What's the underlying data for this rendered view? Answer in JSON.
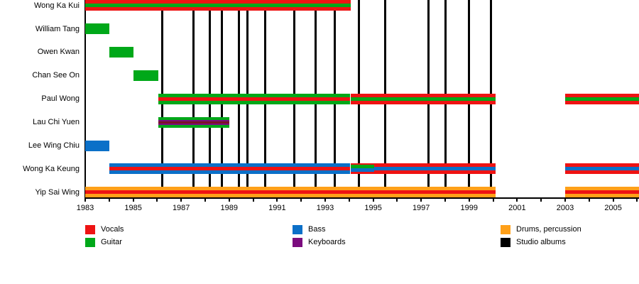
{
  "chart_data": {
    "type": "timeline",
    "description": "Band members timeline (gantt-style) with studio album release lines",
    "x_axis": {
      "start_year": 1983,
      "end_year": 2006.1,
      "labeled_years": [
        "1983",
        "1985",
        "1987",
        "1989",
        "1991",
        "1993",
        "1995",
        "1997",
        "1999",
        "2001",
        "2003",
        "2005"
      ],
      "minor_tick_every_years": 1
    },
    "members": [
      {
        "name": "Wong Ka Kui",
        "segments": [
          {
            "start": 1983.0,
            "end": 1994.05,
            "style": "vocals_guitar"
          }
        ]
      },
      {
        "name": "William Tang",
        "segments": [
          {
            "start": 1983.0,
            "end": 1984.0,
            "style": "guitar"
          }
        ]
      },
      {
        "name": "Owen Kwan",
        "segments": [
          {
            "start": 1984.0,
            "end": 1985.0,
            "style": "guitar"
          }
        ]
      },
      {
        "name": "Chan See On",
        "segments": [
          {
            "start": 1985.0,
            "end": 1986.05,
            "style": "guitar"
          }
        ]
      },
      {
        "name": "Paul Wong",
        "segments": [
          {
            "start": 1986.05,
            "end": 1994.05,
            "style": "guitar_vocals"
          },
          {
            "start": 1994.05,
            "end": 2000.1,
            "style": "vocals_guitar"
          },
          {
            "start": 2003.0,
            "end": 2006.1,
            "style": "vocals_guitar"
          }
        ]
      },
      {
        "name": "Lau Chi Yuen",
        "segments": [
          {
            "start": 1986.05,
            "end": 1989.0,
            "style": "guitar_keyboards"
          }
        ]
      },
      {
        "name": "Lee Wing Chiu",
        "segments": [
          {
            "start": 1983.0,
            "end": 1984.0,
            "style": "bass"
          }
        ]
      },
      {
        "name": "Wong Ka Keung",
        "segments": [
          {
            "start": 1984.0,
            "end": 1994.05,
            "style": "bass_vocals"
          },
          {
            "start": 1994.05,
            "end": 1995.05,
            "style": "vocals_guitar_bass"
          },
          {
            "start": 1995.05,
            "end": 2000.1,
            "style": "vocals_bass"
          },
          {
            "start": 2003.0,
            "end": 2006.1,
            "style": "vocals_bass"
          }
        ]
      },
      {
        "name": "Yip Sai Wing",
        "segments": [
          {
            "start": 1983.0,
            "end": 2000.1,
            "style": "drums_vocals"
          },
          {
            "start": 2003.0,
            "end": 2006.1,
            "style": "drums_vocals"
          }
        ]
      }
    ],
    "studio_album_years": [
      1986.2,
      1987.5,
      1988.2,
      1988.7,
      1989.4,
      1989.75,
      1990.5,
      1991.7,
      1992.6,
      1993.4,
      1994.4,
      1995.5,
      1997.3,
      1998.0,
      1999.0,
      1999.9
    ],
    "bar_styles": {
      "guitar": [
        [
          "green",
          15
        ]
      ],
      "bass": [
        [
          "blue",
          15
        ]
      ],
      "vocals_guitar": [
        [
          "red",
          5
        ],
        [
          "green",
          5
        ],
        [
          "red",
          5
        ]
      ],
      "guitar_vocals": [
        [
          "green",
          5
        ],
        [
          "red",
          5
        ],
        [
          "green",
          5
        ]
      ],
      "bass_vocals": [
        [
          "blue",
          5
        ],
        [
          "red",
          5
        ],
        [
          "blue",
          5
        ]
      ],
      "vocals_bass": [
        [
          "red",
          5
        ],
        [
          "blue",
          5
        ],
        [
          "red",
          5
        ]
      ],
      "drums_vocals": [
        [
          "orange",
          5
        ],
        [
          "red",
          5
        ],
        [
          "orange",
          5
        ]
      ],
      "vocals_guitar_bass": [
        [
          "red",
          2
        ],
        [
          "green",
          5
        ],
        [
          "blue",
          5
        ],
        [
          "red",
          3
        ]
      ],
      "guitar_keyboards": [
        [
          "green",
          4
        ],
        [
          "purple",
          2
        ],
        [
          "maroon",
          3
        ],
        [
          "purple",
          2
        ],
        [
          "green",
          4
        ]
      ]
    },
    "colors": {
      "red": "#ee1313",
      "green": "#00a819",
      "blue": "#0b70c8",
      "purple": "#7b0c7e",
      "orange": "#ffa019",
      "maroon": "#7a1228",
      "black": "#000000"
    }
  },
  "legend": {
    "items": [
      {
        "label": "Vocals",
        "color": "red"
      },
      {
        "label": "Guitar",
        "color": "green"
      },
      {
        "label": "Bass",
        "color": "blue"
      },
      {
        "label": "Keyboards",
        "color": "purple"
      },
      {
        "label": "Drums, percussion",
        "color": "orange"
      },
      {
        "label": "Studio albums",
        "color": "black"
      }
    ]
  }
}
